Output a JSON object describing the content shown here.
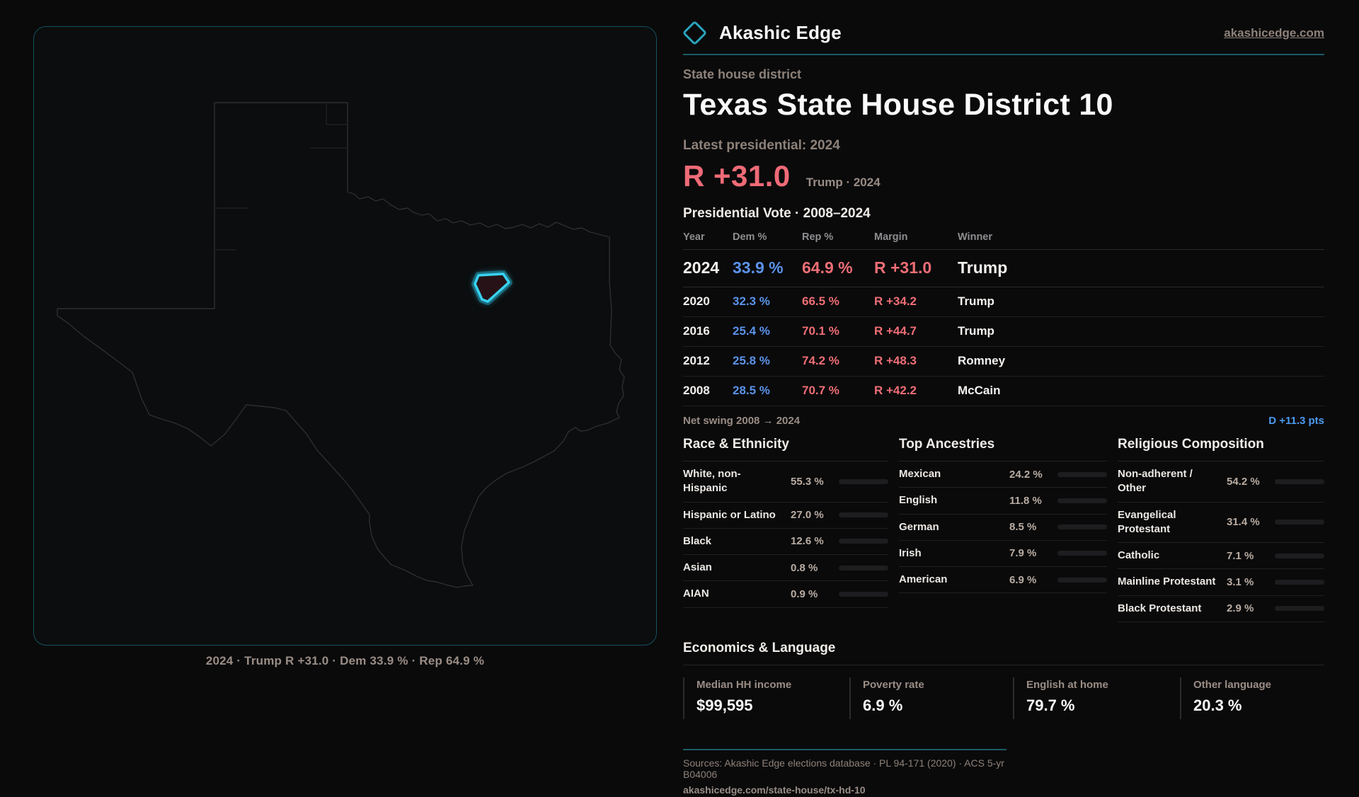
{
  "brand": {
    "name": "Akashic Edge",
    "site": "akashicedge.com"
  },
  "page": {
    "kicker": "State house district",
    "title": "Texas State House District 10"
  },
  "headline": {
    "label": "Latest presidential: 2024",
    "margin": "R +31.0",
    "sub": "Trump · 2024"
  },
  "vote_table": {
    "title": "Presidential Vote · 2008–2024",
    "columns": {
      "year": "Year",
      "dem": "Dem %",
      "rep": "Rep %",
      "margin": "Margin",
      "winner": "Winner"
    },
    "rows": [
      {
        "year": "2024",
        "dem": "33.9 %",
        "rep": "64.9 %",
        "margin": "R +31.0",
        "winner": "Trump"
      },
      {
        "year": "2020",
        "dem": "32.3 %",
        "rep": "66.5 %",
        "margin": "R +34.2",
        "winner": "Trump"
      },
      {
        "year": "2016",
        "dem": "25.4 %",
        "rep": "70.1 %",
        "margin": "R +44.7",
        "winner": "Trump"
      },
      {
        "year": "2012",
        "dem": "25.8 %",
        "rep": "74.2 %",
        "margin": "R +48.3",
        "winner": "Romney"
      },
      {
        "year": "2008",
        "dem": "28.5 %",
        "rep": "70.7 %",
        "margin": "R +42.2",
        "winner": "McCain"
      }
    ]
  },
  "net_swing": {
    "label": "Net swing 2008 → 2024",
    "value": "D +11.3 pts"
  },
  "race": {
    "title": "Race & Ethnicity",
    "rows": [
      {
        "label": "White, non-Hispanic",
        "value": "55.3 %",
        "pct": 55.3,
        "color": "#8fa3bb"
      },
      {
        "label": "Hispanic or Latino",
        "value": "27.0 %",
        "pct": 27.0,
        "color": "#d79b2f"
      },
      {
        "label": "Black",
        "value": "12.6 %",
        "pct": 12.6,
        "color": "#8d7ce4"
      },
      {
        "label": "Asian",
        "value": "0.8 %",
        "pct": 0.8,
        "color": "#27a07a"
      },
      {
        "label": "AIAN",
        "value": "0.9 %",
        "pct": 0.9,
        "color": "#bf6b24"
      }
    ]
  },
  "ancestries": {
    "title": "Top Ancestries",
    "rows": [
      {
        "label": "Mexican",
        "value": "24.2 %",
        "pct": 24.2,
        "color": "#d79b2f"
      },
      {
        "label": "English",
        "value": "11.8 %",
        "pct": 11.8,
        "color": "#8fa3bb"
      },
      {
        "label": "German",
        "value": "8.5 %",
        "pct": 8.5,
        "color": "#8fa3bb"
      },
      {
        "label": "Irish",
        "value": "7.9 %",
        "pct": 7.9,
        "color": "#8fa3bb"
      },
      {
        "label": "American",
        "value": "6.9 %",
        "pct": 6.9,
        "color": "#8fa3bb"
      }
    ]
  },
  "religion": {
    "title": "Religious Composition",
    "rows": [
      {
        "label": "Non-adherent / Other",
        "value": "54.2 %",
        "pct": 54.2,
        "color": "#7e8ba0"
      },
      {
        "label": "Evangelical Protestant",
        "value": "31.4 %",
        "pct": 31.4,
        "color": "#dd6570"
      },
      {
        "label": "Catholic",
        "value": "7.1 %",
        "pct": 7.1,
        "color": "#e0ba2b"
      },
      {
        "label": "Mainline Protestant",
        "value": "3.1 %",
        "pct": 3.1,
        "color": "#5b8ef0"
      },
      {
        "label": "Black Protestant",
        "value": "2.9 %",
        "pct": 2.9,
        "color": "#9a7bd9"
      }
    ]
  },
  "economics": {
    "title": "Economics & Language",
    "stats": [
      {
        "label": "Median HH income",
        "value": "$99,595"
      },
      {
        "label": "Poverty rate",
        "value": "6.9 %"
      },
      {
        "label": "English at home",
        "value": "79.7 %"
      },
      {
        "label": "Other language",
        "value": "20.3 %"
      }
    ]
  },
  "map": {
    "caption": "2024 · Trump R +31.0 · Dem 33.9 % · Rep 64.9 %"
  },
  "footer": {
    "sources": "Sources: Akashic Edge elections database · PL 94-171 (2020) · ACS 5-yr B04006",
    "url": "akashicedge.com/state-house/tx-hd-10"
  },
  "chart_data": {
    "type": "table",
    "title": "Presidential Vote · 2008–2024",
    "categories": [
      2024,
      2020,
      2016,
      2012,
      2008
    ],
    "series": [
      {
        "name": "Dem %",
        "values": [
          33.9,
          32.3,
          25.4,
          25.8,
          28.5
        ]
      },
      {
        "name": "Rep %",
        "values": [
          64.9,
          66.5,
          70.1,
          74.2,
          70.7
        ]
      },
      {
        "name": "R margin",
        "values": [
          31.0,
          34.2,
          44.7,
          48.3,
          42.2
        ]
      }
    ],
    "winners": [
      "Trump",
      "Trump",
      "Trump",
      "Romney",
      "McCain"
    ],
    "net_swing_pts_dem": 11.3
  }
}
